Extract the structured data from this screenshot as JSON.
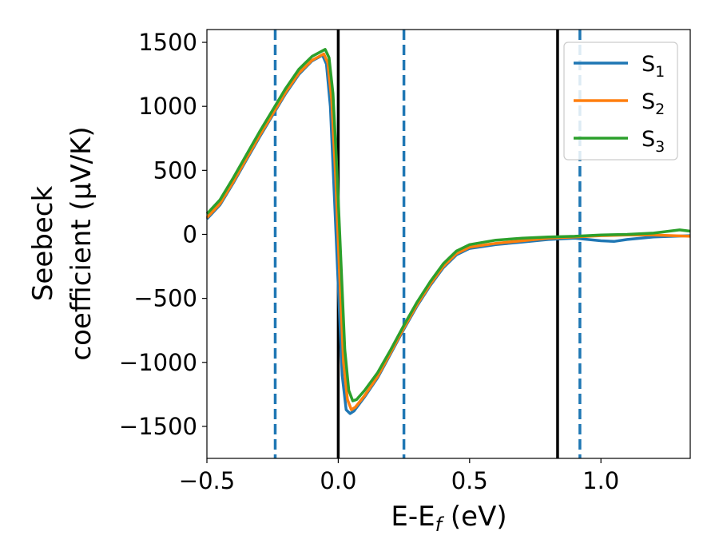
{
  "chart_data": {
    "type": "line",
    "xlabel": "E-E",
    "xlabel_sub": "f",
    "xlabel_unit": " (eV)",
    "ylabel_line1": "Seebeck",
    "ylabel_line2": "coefficient  (μV/K)",
    "xlim": [
      -0.5,
      1.34
    ],
    "ylim": [
      -1750,
      1600
    ],
    "x_ticks": [
      -0.5,
      0.0,
      0.5,
      1.0
    ],
    "x_tick_labels": [
      "−0.5",
      "0.0",
      "0.5",
      "1.0"
    ],
    "y_ticks": [
      -1500,
      -1000,
      -500,
      0,
      500,
      1000,
      1500
    ],
    "y_tick_labels": [
      "−1500",
      "−1000",
      "−500",
      "0",
      "500",
      "1000",
      "1500"
    ],
    "legend_position": "top-right",
    "vertical_lines": [
      {
        "x": -0.24,
        "style": "dashed",
        "color": "#1f77b4"
      },
      {
        "x": 0.0,
        "style": "solid",
        "color": "#000000"
      },
      {
        "x": 0.25,
        "style": "dashed",
        "color": "#1f77b4"
      },
      {
        "x": 0.835,
        "style": "solid",
        "color": "#000000"
      },
      {
        "x": 0.92,
        "style": "dashed",
        "color": "#1f77b4"
      }
    ],
    "series": [
      {
        "name": "S",
        "sub": "1",
        "color": "#1f77b4",
        "points": [
          [
            -0.5,
            120
          ],
          [
            -0.45,
            230
          ],
          [
            -0.4,
            400
          ],
          [
            -0.35,
            580
          ],
          [
            -0.3,
            760
          ],
          [
            -0.25,
            930
          ],
          [
            -0.2,
            1100
          ],
          [
            -0.15,
            1250
          ],
          [
            -0.1,
            1355
          ],
          [
            -0.06,
            1400
          ],
          [
            -0.045,
            1330
          ],
          [
            -0.03,
            1000
          ],
          [
            -0.015,
            300
          ],
          [
            0.0,
            -400
          ],
          [
            0.015,
            -1100
          ],
          [
            0.03,
            -1370
          ],
          [
            0.045,
            -1400
          ],
          [
            0.06,
            -1380
          ],
          [
            0.1,
            -1270
          ],
          [
            0.15,
            -1120
          ],
          [
            0.2,
            -930
          ],
          [
            0.25,
            -740
          ],
          [
            0.3,
            -560
          ],
          [
            0.35,
            -400
          ],
          [
            0.4,
            -260
          ],
          [
            0.45,
            -160
          ],
          [
            0.5,
            -110
          ],
          [
            0.6,
            -80
          ],
          [
            0.7,
            -60
          ],
          [
            0.8,
            -40
          ],
          [
            0.9,
            -30
          ],
          [
            1.0,
            -50
          ],
          [
            1.05,
            -55
          ],
          [
            1.1,
            -40
          ],
          [
            1.2,
            -20
          ],
          [
            1.34,
            -10
          ]
        ]
      },
      {
        "name": "S",
        "sub": "2",
        "color": "#ff7f0e",
        "points": [
          [
            -0.5,
            130
          ],
          [
            -0.45,
            240
          ],
          [
            -0.4,
            410
          ],
          [
            -0.35,
            590
          ],
          [
            -0.3,
            770
          ],
          [
            -0.25,
            940
          ],
          [
            -0.2,
            1110
          ],
          [
            -0.15,
            1260
          ],
          [
            -0.1,
            1360
          ],
          [
            -0.055,
            1410
          ],
          [
            -0.04,
            1340
          ],
          [
            -0.025,
            1050
          ],
          [
            -0.01,
            450
          ],
          [
            0.005,
            -300
          ],
          [
            0.02,
            -1000
          ],
          [
            0.035,
            -1290
          ],
          [
            0.05,
            -1370
          ],
          [
            0.065,
            -1350
          ],
          [
            0.1,
            -1260
          ],
          [
            0.15,
            -1110
          ],
          [
            0.2,
            -920
          ],
          [
            0.25,
            -730
          ],
          [
            0.3,
            -550
          ],
          [
            0.35,
            -390
          ],
          [
            0.4,
            -250
          ],
          [
            0.45,
            -150
          ],
          [
            0.5,
            -100
          ],
          [
            0.6,
            -70
          ],
          [
            0.7,
            -50
          ],
          [
            0.8,
            -30
          ],
          [
            0.9,
            -20
          ],
          [
            1.0,
            -10
          ],
          [
            1.1,
            -5
          ],
          [
            1.2,
            -5
          ],
          [
            1.34,
            -15
          ]
        ]
      },
      {
        "name": "S",
        "sub": "3",
        "color": "#2ca02c",
        "points": [
          [
            -0.5,
            160
          ],
          [
            -0.45,
            270
          ],
          [
            -0.4,
            440
          ],
          [
            -0.35,
            620
          ],
          [
            -0.3,
            800
          ],
          [
            -0.25,
            970
          ],
          [
            -0.2,
            1140
          ],
          [
            -0.15,
            1290
          ],
          [
            -0.1,
            1390
          ],
          [
            -0.05,
            1445
          ],
          [
            -0.035,
            1380
          ],
          [
            -0.02,
            1100
          ],
          [
            -0.005,
            500
          ],
          [
            0.01,
            -200
          ],
          [
            0.025,
            -900
          ],
          [
            0.04,
            -1220
          ],
          [
            0.055,
            -1300
          ],
          [
            0.07,
            -1290
          ],
          [
            0.1,
            -1220
          ],
          [
            0.15,
            -1080
          ],
          [
            0.2,
            -900
          ],
          [
            0.25,
            -710
          ],
          [
            0.3,
            -530
          ],
          [
            0.35,
            -370
          ],
          [
            0.4,
            -230
          ],
          [
            0.45,
            -130
          ],
          [
            0.5,
            -80
          ],
          [
            0.6,
            -45
          ],
          [
            0.7,
            -30
          ],
          [
            0.8,
            -20
          ],
          [
            0.9,
            -15
          ],
          [
            1.0,
            -5
          ],
          [
            1.1,
            0
          ],
          [
            1.2,
            10
          ],
          [
            1.3,
            35
          ],
          [
            1.34,
            25
          ]
        ]
      }
    ]
  }
}
